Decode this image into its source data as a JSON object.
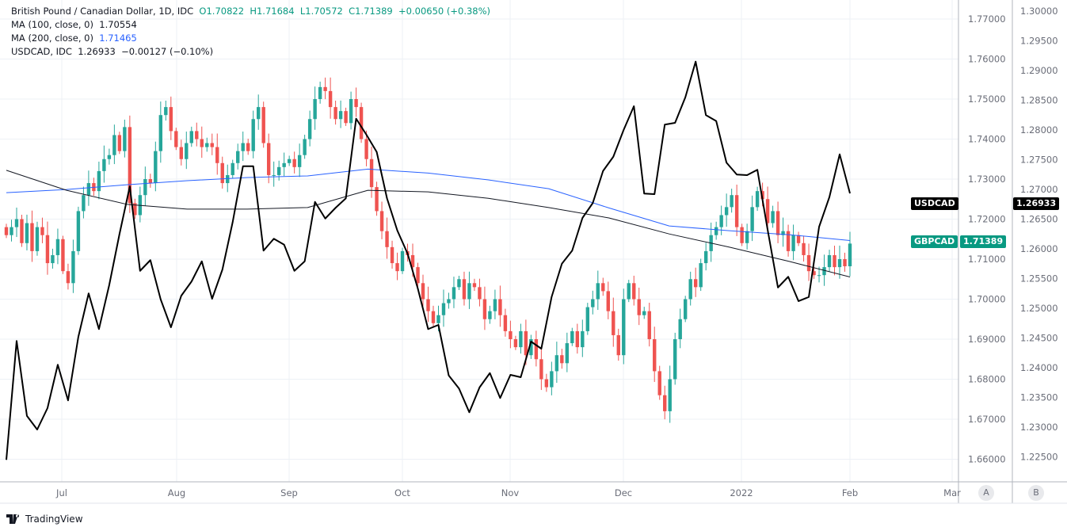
{
  "legend": {
    "main_label": "British Pound / Canadian Dollar, 1D, IDC",
    "open": "O1.70822",
    "high": "H1.71684",
    "low": "L1.70572",
    "close": "C1.71389",
    "change": "+0.00650 (+0.38%)",
    "ma100_label": "MA (100, close, 0)",
    "ma100_value": "1.70554",
    "ma200_label": "MA (200, close, 0)",
    "ma200_value": "1.71465",
    "usdcad_label": "USDCAD, IDC",
    "usdcad_value": "1.26933",
    "usdcad_change": "−0.00127 (−0.10%)"
  },
  "tags": {
    "usdcad_name": "USDCAD",
    "usdcad_price": "1.26933",
    "gbpcad_name": "GBPCAD",
    "gbpcad_price": "1.71389"
  },
  "buttons": {
    "a": "A",
    "b": "B"
  },
  "brand": "TradingView",
  "colors": {
    "up": "#26a69a",
    "down": "#ef5350",
    "ma100": "#131722",
    "ma200": "#2962ff",
    "usdcad": "#000000",
    "grid": "#edf1f6"
  },
  "chart_data": {
    "type": "candlestick",
    "left_axis_ticks": [
      "1.77000",
      "1.76000",
      "1.75000",
      "1.74000",
      "1.73000",
      "1.72000",
      "1.71000",
      "1.70000",
      "1.69000",
      "1.68000",
      "1.67000",
      "1.66000"
    ],
    "right_axis_ticks": [
      "1.30000",
      "1.29500",
      "1.29000",
      "1.28500",
      "1.28000",
      "1.27500",
      "1.27000",
      "1.26500",
      "1.26000",
      "1.25500",
      "1.25000",
      "1.24500",
      "1.24000",
      "1.23500",
      "1.23000",
      "1.22500"
    ],
    "x_ticks": [
      "Jul",
      "Aug",
      "Sep",
      "Oct",
      "Nov",
      "Dec",
      "2022",
      "Feb",
      "Mar"
    ],
    "gbpcad_closes": [
      1.716,
      1.718,
      1.72,
      1.714,
      1.719,
      1.712,
      1.718,
      1.716,
      1.709,
      1.711,
      1.715,
      1.707,
      1.704,
      1.712,
      1.722,
      1.726,
      1.729,
      1.727,
      1.732,
      1.735,
      1.736,
      1.741,
      1.737,
      1.743,
      1.724,
      1.721,
      1.726,
      1.73,
      1.729,
      1.737,
      1.746,
      1.748,
      1.742,
      1.738,
      1.735,
      1.739,
      1.742,
      1.74,
      1.738,
      1.739,
      1.738,
      1.734,
      1.729,
      1.731,
      1.734,
      1.737,
      1.739,
      1.737,
      1.745,
      1.748,
      1.739,
      1.731,
      1.731,
      1.733,
      1.734,
      1.735,
      1.733,
      1.736,
      1.74,
      1.745,
      1.75,
      1.753,
      1.752,
      1.748,
      1.745,
      1.747,
      1.744,
      1.75,
      1.748,
      1.74,
      1.735,
      1.728,
      1.722,
      1.717,
      1.713,
      1.709,
      1.707,
      1.712,
      1.711,
      1.708,
      1.704,
      1.7,
      1.697,
      1.694,
      1.696,
      1.699,
      1.7,
      1.703,
      1.705,
      1.7,
      1.704,
      1.703,
      1.7,
      1.695,
      1.697,
      1.7,
      1.696,
      1.692,
      1.69,
      1.688,
      1.692,
      1.686,
      1.69,
      1.685,
      1.68,
      1.678,
      1.682,
      1.686,
      1.684,
      1.689,
      1.692,
      1.688,
      1.692,
      1.698,
      1.7,
      1.704,
      1.702,
      1.697,
      1.691,
      1.686,
      1.7,
      1.704,
      1.7,
      1.696,
      1.697,
      1.69,
      1.682,
      1.676,
      1.672,
      1.68,
      1.69,
      1.695,
      1.7,
      1.705,
      1.703,
      1.709,
      1.712,
      1.716,
      1.718,
      1.721,
      1.723,
      1.726,
      1.718,
      1.714,
      1.717,
      1.723,
      1.727,
      1.725,
      1.719,
      1.722,
      1.716,
      1.717,
      1.712,
      1.716,
      1.714,
      1.711,
      1.707,
      1.706,
      1.706,
      1.708,
      1.711,
      1.708,
      1.71,
      1.70822
    ],
    "last_candle": {
      "open": 1.70822,
      "high": 1.71684,
      "low": 1.70572,
      "close": 1.71389
    },
    "ma100": [
      1.7322,
      1.7272,
      1.7237,
      1.7225,
      1.7225,
      1.7229,
      1.7272,
      1.7268,
      1.7252,
      1.7229,
      1.7203,
      1.7163,
      1.713,
      1.7094,
      1.70554
    ],
    "ma200": [
      1.7266,
      1.7274,
      1.7286,
      1.7296,
      1.7304,
      1.7308,
      1.7325,
      1.7315,
      1.7298,
      1.7276,
      1.7228,
      1.7183,
      1.7171,
      1.7161,
      1.71465
    ],
    "usdcad": [
      1.2245,
      1.2445,
      1.2319,
      1.2296,
      1.2332,
      1.2405,
      1.2345,
      1.2452,
      1.2525,
      1.2465,
      1.2539,
      1.2625,
      1.2705,
      1.2563,
      1.2581,
      1.2515,
      1.2468,
      1.2521,
      1.2545,
      1.2579,
      1.2516,
      1.2565,
      1.2645,
      1.2739,
      1.2739,
      1.2597,
      1.2617,
      1.2607,
      1.2563,
      1.2579,
      1.2679,
      1.2651,
      1.2669,
      1.2685,
      1.2819,
      1.2792,
      1.2763,
      1.2685,
      1.2631,
      1.2592,
      1.2533,
      1.2465,
      1.2472,
      1.2387,
      1.2365,
      1.2325,
      1.2367,
      1.2391,
      1.2349,
      1.2388,
      1.2384,
      1.2444,
      1.2432,
      1.2519,
      1.2575,
      1.2597,
      1.2652,
      1.2677,
      1.2731,
      1.2755,
      1.28,
      1.284,
      1.2693,
      1.2692,
      1.2809,
      1.2812,
      1.2855,
      1.2915,
      1.2825,
      1.2815,
      1.2745,
      1.2725,
      1.2724,
      1.2733,
      1.2632,
      1.2535,
      1.2553,
      1.2512,
      1.2519,
      1.2637,
      1.2687,
      1.2759,
      1.26933
    ]
  }
}
